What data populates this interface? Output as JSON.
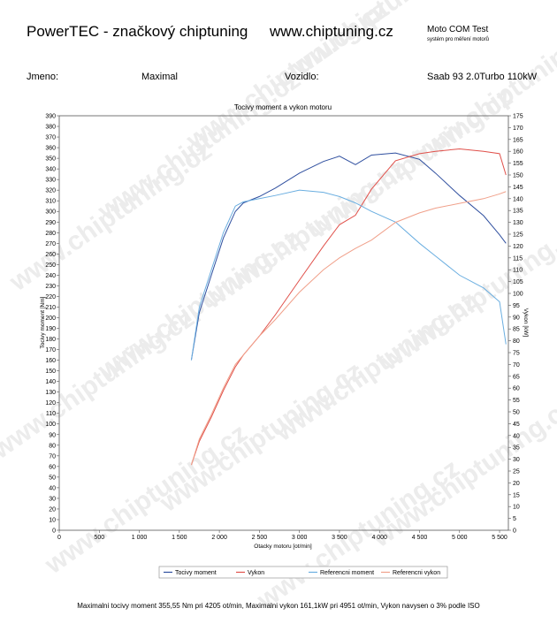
{
  "header": {
    "title": "PowerTEC - značkový chiptuning",
    "url": "www.chiptuning.cz",
    "brand": "Moto COM Test",
    "brand_sub": "systém pro měření motorů"
  },
  "info": {
    "name_label": "Jmeno:",
    "name": "Maximal",
    "vehicle_label": "Vozidlo:",
    "vehicle": "Saab 93 2.0Turbo 110kW"
  },
  "watermark": "www.chiptuning.cz",
  "footer": "Maximalni tocivy moment 355,55 Nm pri 4205 ot/min,  Maximalni vykon 161,1kW pri 4951 ot/min,  Vykon navysen o 3% podle ISO",
  "chart_data": {
    "type": "line",
    "title": "Tocivy moment a vykon motoru",
    "x_label": "Otacky motoru [ot/min]",
    "y_label": "Tocivy moment [Nm]",
    "y2_label": "Vykon [kW]",
    "x": [
      1650,
      1750,
      1900,
      2050,
      2200,
      2300,
      2500,
      2700,
      3000,
      3300,
      3500,
      3700,
      3900,
      4200,
      4500,
      4700,
      5000,
      5300,
      5500,
      5580
    ],
    "series": [
      {
        "name": "Tocivy moment",
        "color": "#2f4f9f",
        "values": [
          160,
          205,
          240,
          275,
          300,
          308,
          314,
          322,
          336,
          347,
          352,
          344,
          353,
          355,
          349,
          336,
          315,
          296,
          278,
          270
        ]
      },
      {
        "name": "Vykon",
        "color": "#e0504a",
        "axis": "y2",
        "values": [
          27.6,
          37.6,
          47.8,
          59,
          69,
          74,
          82,
          91,
          105.6,
          120,
          129,
          133,
          144,
          156,
          159,
          160,
          161,
          160,
          159,
          150
        ]
      },
      {
        "name": "Referencni moment",
        "color": "#6aaee0",
        "values": [
          160,
          210,
          245,
          280,
          305,
          309,
          312,
          315,
          320,
          318,
          314,
          308,
          300,
          290,
          270,
          258,
          240,
          228,
          215,
          175
        ]
      },
      {
        "name": "Referencni vykon",
        "color": "#f0a08a",
        "axis": "y2",
        "values": [
          27.6,
          38.5,
          48.8,
          60,
          70,
          74,
          82,
          89,
          100.5,
          110,
          115,
          119,
          122.5,
          130,
          134,
          136,
          138,
          140,
          142,
          143
        ]
      }
    ],
    "xlim": [
      0,
      5610
    ],
    "xticks": [
      0,
      500,
      {
        "value": 1000,
        "label": "1 000"
      },
      {
        "value": 1500,
        "label": "1 500"
      },
      {
        "value": 2000,
        "label": "2 000"
      },
      {
        "value": 2500,
        "label": "2 500"
      },
      {
        "value": 3000,
        "label": "3 000"
      },
      {
        "value": 3500,
        "label": "3 500"
      },
      {
        "value": 4000,
        "label": "4 000"
      },
      {
        "value": 4500,
        "label": "4 500"
      },
      {
        "value": 5000,
        "label": "5 000"
      },
      {
        "value": 5500,
        "label": "5 500"
      }
    ],
    "ylim": [
      0,
      390
    ],
    "yticks": [
      0,
      10,
      20,
      30,
      40,
      50,
      60,
      70,
      80,
      90,
      100,
      110,
      120,
      130,
      140,
      150,
      160,
      170,
      180,
      190,
      200,
      210,
      220,
      230,
      240,
      250,
      260,
      270,
      280,
      290,
      300,
      310,
      320,
      330,
      340,
      350,
      360,
      370,
      380,
      390
    ],
    "y2lim": [
      0,
      175
    ],
    "y2ticks": [
      0,
      5,
      10,
      15,
      20,
      25,
      30,
      35,
      40,
      45,
      50,
      55,
      60,
      65,
      70,
      75,
      80,
      85,
      90,
      95,
      100,
      105,
      110,
      115,
      120,
      125,
      130,
      135,
      140,
      145,
      150,
      155,
      160,
      165,
      170,
      175
    ]
  }
}
